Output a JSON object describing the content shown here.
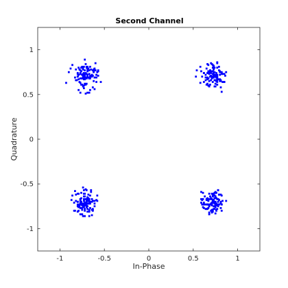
{
  "chart_data": {
    "type": "scatter",
    "title": "Second Channel",
    "xlabel": "In-Phase",
    "ylabel": "Quadrature",
    "xlim": [
      -1.25,
      1.25
    ],
    "ylim": [
      -1.25,
      1.25
    ],
    "x_ticks": [
      -1,
      -0.5,
      0,
      0.5,
      1
    ],
    "x_tick_labels": [
      "-1",
      "-0.5",
      "0",
      "0.5",
      "1"
    ],
    "y_ticks": [
      -1,
      -0.5,
      0,
      0.5,
      1
    ],
    "y_tick_labels": [
      "-1",
      "-0.5",
      "0",
      "0.5",
      "1"
    ],
    "grid": false,
    "marker": "square",
    "series_color": "#0000ff",
    "series": [
      {
        "cluster": "upper-left",
        "x": [
          -0.73,
          -0.7,
          -0.71,
          -0.64,
          -0.59,
          -0.88,
          -0.68,
          -0.7,
          -0.8,
          -0.62,
          -0.69,
          -0.75,
          -0.93,
          -0.71,
          -0.61,
          -0.79,
          -0.57,
          -0.63,
          -0.75,
          -0.75,
          -0.66,
          -0.73,
          -0.8,
          -0.54,
          -0.82,
          -0.78,
          -0.69,
          -0.75,
          -0.72,
          -0.67,
          -0.7,
          -0.61,
          -0.77,
          -0.74,
          -0.76,
          -0.73,
          -0.75,
          -0.6,
          -0.61,
          -0.73,
          -0.66,
          -0.77,
          -0.72,
          -0.57,
          -0.67,
          -0.72,
          -0.86,
          -0.66,
          -0.71,
          -0.8,
          -0.77,
          -0.73,
          -0.79,
          -0.82,
          -0.73,
          -0.58,
          -0.72,
          -0.63,
          -0.69,
          -0.59,
          -0.79,
          -0.7,
          -0.66,
          -0.74,
          -0.7,
          -0.79,
          -0.78,
          -0.64,
          -0.74,
          -0.67,
          -0.57,
          -0.77,
          -0.65,
          -0.83,
          -0.77,
          -0.72,
          -0.77,
          -0.74,
          -0.69,
          -0.65,
          -0.62,
          -0.75,
          -0.7,
          -0.9,
          -0.59,
          -0.72,
          -0.71,
          -0.62,
          -0.8,
          -0.77,
          -0.73,
          -0.6,
          -0.63,
          -0.76,
          -0.68,
          -0.73,
          -0.72,
          -0.81,
          -0.73,
          -0.67,
          -0.69,
          -0.62,
          -0.66,
          -0.76,
          -0.69,
          -0.74,
          -0.68,
          -0.61,
          -0.74,
          -0.74
        ],
        "y": [
          0.7,
          0.68,
          0.74,
          0.7,
          0.69,
          0.79,
          0.79,
          0.69,
          0.74,
          0.76,
          0.81,
          0.68,
          0.63,
          0.84,
          0.56,
          0.55,
          0.71,
          0.58,
          0.81,
          0.72,
          0.68,
          0.7,
          0.73,
          0.64,
          0.78,
          0.64,
          0.71,
          0.68,
          0.77,
          0.52,
          0.62,
          0.69,
          0.73,
          0.71,
          0.61,
          0.6,
          0.61,
          0.85,
          0.77,
          0.68,
          0.55,
          0.63,
          0.71,
          0.77,
          0.73,
          0.62,
          0.83,
          0.81,
          0.61,
          0.7,
          0.73,
          0.81,
          0.8,
          0.66,
          0.57,
          0.75,
          0.89,
          0.71,
          0.52,
          0.72,
          0.72,
          0.81,
          0.7,
          0.8,
          0.8,
          0.67,
          0.78,
          0.72,
          0.59,
          0.68,
          0.76,
          0.77,
          0.71,
          0.69,
          0.74,
          0.67,
          0.52,
          0.78,
          0.72,
          0.78,
          0.78,
          0.72,
          0.73,
          0.75,
          0.64,
          0.72,
          0.51,
          0.75,
          0.7,
          0.68,
          0.74,
          0.77,
          0.77,
          0.8,
          0.77,
          0.73,
          0.69,
          0.66,
          0.67,
          0.77,
          0.78,
          0.65,
          0.71,
          0.76,
          0.76,
          0.73,
          0.69,
          0.79,
          0.72,
          0.69
        ]
      },
      {
        "cluster": "upper-right",
        "x": [
          0.7,
          0.58,
          0.85,
          0.65,
          0.72,
          0.62,
          0.7,
          0.7,
          0.69,
          0.67,
          0.79,
          0.6,
          0.68,
          0.83,
          0.73,
          0.66,
          0.76,
          0.67,
          0.75,
          0.82,
          0.71,
          0.76,
          0.87,
          0.62,
          0.77,
          0.74,
          0.71,
          0.68,
          0.8,
          0.77,
          0.83,
          0.66,
          0.76,
          0.66,
          0.68,
          0.8,
          0.72,
          0.74,
          0.69,
          0.7,
          0.82,
          0.72,
          0.85,
          0.73,
          0.64,
          0.66,
          0.74,
          0.73,
          0.72,
          0.66,
          0.75,
          0.7,
          0.73,
          0.75,
          0.77,
          0.74,
          0.81,
          0.8,
          0.72,
          0.53,
          0.75,
          0.69,
          0.85,
          0.69,
          0.7,
          0.77,
          0.67,
          0.74,
          0.74,
          0.74,
          0.54,
          0.77,
          0.86,
          0.8,
          0.72,
          0.73,
          0.67,
          0.77,
          0.73,
          0.67,
          0.76,
          0.77,
          0.81,
          0.79,
          0.71,
          0.82,
          0.81,
          0.67,
          0.77,
          0.65,
          0.78,
          0.58,
          0.7,
          0.77,
          0.82,
          0.8,
          0.59,
          0.72,
          0.64,
          0.66,
          0.69,
          0.73,
          0.73,
          0.64,
          0.62,
          0.73,
          0.68,
          0.76,
          0.77,
          0.69
        ],
        "y": [
          0.66,
          0.81,
          0.64,
          0.79,
          0.7,
          0.74,
          0.85,
          0.71,
          0.75,
          0.83,
          0.77,
          0.7,
          0.65,
          0.64,
          0.74,
          0.68,
          0.65,
          0.68,
          0.7,
          0.73,
          0.7,
          0.74,
          0.75,
          0.64,
          0.72,
          0.8,
          0.84,
          0.76,
          0.65,
          0.61,
          0.73,
          0.74,
          0.72,
          0.67,
          0.59,
          0.76,
          0.73,
          0.71,
          0.77,
          0.71,
          0.53,
          0.64,
          0.73,
          0.69,
          0.72,
          0.62,
          0.66,
          0.72,
          0.76,
          0.69,
          0.66,
          0.75,
          0.73,
          0.62,
          0.7,
          0.72,
          0.58,
          0.75,
          0.76,
          0.7,
          0.59,
          0.76,
          0.64,
          0.61,
          0.74,
          0.68,
          0.74,
          0.59,
          0.71,
          0.75,
          0.77,
          0.86,
          0.71,
          0.72,
          0.83,
          0.69,
          0.6,
          0.66,
          0.82,
          0.68,
          0.69,
          0.69,
          0.65,
          0.81,
          0.68,
          0.75,
          0.66,
          0.76,
          0.64,
          0.61,
          0.67,
          0.63,
          0.76,
          0.85,
          0.74,
          0.67,
          0.76,
          0.8,
          0.66,
          0.84,
          0.7,
          0.71,
          0.78,
          0.69,
          0.74,
          0.82,
          0.73,
          0.69,
          0.8,
          0.77
        ]
      },
      {
        "cluster": "lower-left",
        "x": [
          -0.69,
          -0.72,
          -0.76,
          -0.68,
          -0.78,
          -0.71,
          -0.63,
          -0.74,
          -0.77,
          -0.64,
          -0.76,
          -0.58,
          -0.69,
          -0.79,
          -0.75,
          -0.83,
          -0.61,
          -0.71,
          -0.79,
          -0.72,
          -0.77,
          -0.77,
          -0.74,
          -0.63,
          -0.69,
          -0.68,
          -0.73,
          -0.64,
          -0.7,
          -0.84,
          -0.63,
          -0.8,
          -0.7,
          -0.7,
          -0.61,
          -0.8,
          -0.73,
          -0.74,
          -0.67,
          -0.68,
          -0.69,
          -0.84,
          -0.67,
          -0.66,
          -0.72,
          -0.67,
          -0.82,
          -0.69,
          -0.7,
          -0.66,
          -0.72,
          -0.67,
          -0.67,
          -0.75,
          -0.7,
          -0.69,
          -0.8,
          -0.72,
          -0.75,
          -0.82,
          -0.77,
          -0.73,
          -0.75,
          -0.66,
          -0.8,
          -0.58,
          -0.68,
          -0.75,
          -0.87,
          -0.61,
          -0.8,
          -0.73,
          -0.65,
          -0.69,
          -0.86,
          -0.63,
          -0.73,
          -0.76,
          -0.78,
          -0.67,
          -0.73,
          -0.66,
          -0.67,
          -0.64,
          -0.72,
          -0.73,
          -0.79,
          -0.72,
          -0.74,
          -0.77,
          -0.7,
          -0.8,
          -0.69,
          -0.77,
          -0.71,
          -0.65,
          -0.83,
          -0.73,
          -0.69,
          -0.68,
          -0.64,
          -0.59,
          -0.71,
          -0.76,
          -0.75,
          -0.76,
          -0.72,
          -0.73,
          -0.77,
          -0.71
        ],
        "y": [
          -0.69,
          -0.78,
          -0.6,
          -0.66,
          -0.73,
          -0.67,
          -0.69,
          -0.86,
          -0.84,
          -0.67,
          -0.66,
          -0.63,
          -0.75,
          -0.8,
          -0.84,
          -0.58,
          -0.69,
          -0.56,
          -0.76,
          -0.74,
          -0.67,
          -0.67,
          -0.75,
          -0.78,
          -0.69,
          -0.72,
          -0.73,
          -0.85,
          -0.76,
          -0.8,
          -0.79,
          -0.73,
          -0.7,
          -0.57,
          -0.75,
          -0.7,
          -0.57,
          -0.54,
          -0.72,
          -0.62,
          -0.81,
          -0.71,
          -0.67,
          -0.77,
          -0.86,
          -0.68,
          -0.62,
          -0.78,
          -0.74,
          -0.7,
          -0.64,
          -0.79,
          -0.7,
          -0.79,
          -0.68,
          -0.66,
          -0.61,
          -0.71,
          -0.77,
          -0.69,
          -0.73,
          -0.67,
          -0.74,
          -0.63,
          -0.7,
          -0.69,
          -0.67,
          -0.72,
          -0.68,
          -0.72,
          -0.81,
          -0.75,
          -0.57,
          -0.65,
          -0.63,
          -0.8,
          -0.76,
          -0.7,
          -0.75,
          -0.86,
          -0.61,
          -0.72,
          -0.81,
          -0.7,
          -0.61,
          -0.64,
          -0.61,
          -0.74,
          -0.72,
          -0.71,
          -0.7,
          -0.75,
          -0.66,
          -0.69,
          -0.73,
          -0.59,
          -0.8,
          -0.69,
          -0.72,
          -0.69,
          -0.79,
          -0.68,
          -0.71,
          -0.73,
          -0.72,
          -0.7,
          -0.8,
          -0.69,
          -0.77,
          -0.71
        ]
      },
      {
        "cluster": "lower-right",
        "x": [
          0.74,
          0.65,
          0.83,
          0.79,
          0.81,
          0.73,
          0.74,
          0.77,
          0.62,
          0.68,
          0.78,
          0.66,
          0.75,
          0.72,
          0.74,
          0.61,
          0.66,
          0.69,
          0.69,
          0.59,
          0.75,
          0.78,
          0.74,
          0.61,
          0.75,
          0.76,
          0.68,
          0.74,
          0.63,
          0.68,
          0.67,
          0.82,
          0.68,
          0.75,
          0.75,
          0.76,
          0.76,
          0.75,
          0.81,
          0.71,
          0.59,
          0.72,
          0.61,
          0.71,
          0.76,
          0.78,
          0.68,
          0.7,
          0.71,
          0.67,
          0.82,
          0.69,
          0.76,
          0.77,
          0.82,
          0.72,
          0.65,
          0.74,
          0.76,
          0.76,
          0.71,
          0.73,
          0.79,
          0.78,
          0.74,
          0.75,
          0.71,
          0.79,
          0.67,
          0.67,
          0.61,
          0.71,
          0.81,
          0.74,
          0.72,
          0.87,
          0.82,
          0.7,
          0.75,
          0.63,
          0.79,
          0.72,
          0.72,
          0.6,
          0.6,
          0.78,
          0.79,
          0.66,
          0.74,
          0.65,
          0.59,
          0.78,
          0.72,
          0.67,
          0.7,
          0.73,
          0.65,
          0.79,
          0.64,
          0.76,
          0.72,
          0.68,
          0.71,
          0.73,
          0.62,
          0.81,
          0.71,
          0.7,
          0.73,
          0.66
        ],
        "y": [
          -0.72,
          -0.68,
          -0.69,
          -0.62,
          -0.72,
          -0.71,
          -0.66,
          -0.78,
          -0.71,
          -0.82,
          -0.7,
          -0.78,
          -0.7,
          -0.7,
          -0.7,
          -0.73,
          -0.66,
          -0.64,
          -0.64,
          -0.67,
          -0.59,
          -0.57,
          -0.78,
          -0.76,
          -0.73,
          -0.6,
          -0.84,
          -0.75,
          -0.64,
          -0.75,
          -0.67,
          -0.8,
          -0.67,
          -0.76,
          -0.6,
          -0.72,
          -0.66,
          -0.83,
          -0.77,
          -0.71,
          -0.59,
          -0.7,
          -0.67,
          -0.67,
          -0.8,
          -0.75,
          -0.75,
          -0.8,
          -0.61,
          -0.73,
          -0.73,
          -0.73,
          -0.79,
          -0.67,
          -0.63,
          -0.64,
          -0.67,
          -0.75,
          -0.72,
          -0.74,
          -0.71,
          -0.68,
          -0.62,
          -0.57,
          -0.63,
          -0.71,
          -0.82,
          -0.68,
          -0.69,
          -0.77,
          -0.6,
          -0.79,
          -0.62,
          -0.63,
          -0.81,
          -0.69,
          -0.73,
          -0.67,
          -0.64,
          -0.73,
          -0.68,
          -0.68,
          -0.79,
          -0.68,
          -0.73,
          -0.67,
          -0.73,
          -0.73,
          -0.6,
          -0.73,
          -0.71,
          -0.73,
          -0.62,
          -0.68,
          -0.72,
          -0.78,
          -0.78,
          -0.73,
          -0.78,
          -0.66,
          -0.7,
          -0.61,
          -0.73,
          -0.75,
          -0.77,
          -0.7,
          -0.74,
          -0.66,
          -0.61,
          -0.73
        ]
      }
    ]
  }
}
